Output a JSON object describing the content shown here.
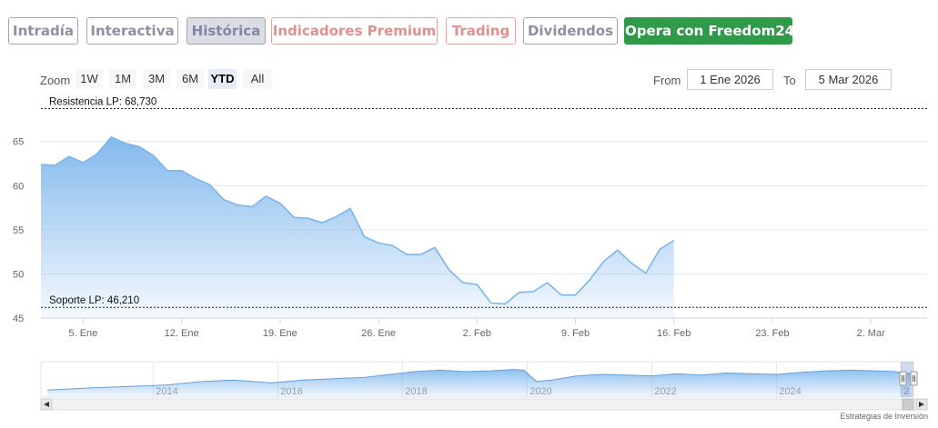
{
  "nav": {
    "tabs": [
      {
        "label": "Intradía",
        "style": "gray"
      },
      {
        "label": "Interactiva",
        "style": "gray"
      },
      {
        "label": "Histórica",
        "style": "active"
      },
      {
        "label": "Indicadores Premium",
        "style": "red"
      },
      {
        "label": "Trading",
        "style": "red"
      },
      {
        "label": "Dividendos",
        "style": "gray"
      },
      {
        "label": "Opera con Freedom24",
        "style": "green"
      }
    ]
  },
  "range_selector": {
    "zoom_label": "Zoom",
    "buttons": [
      "1W",
      "1M",
      "3M",
      "6M",
      "YTD",
      "All"
    ],
    "selected": "YTD",
    "from_label": "From",
    "from_value": "1 Ene 2026",
    "to_label": "To",
    "to_value": "5 Mar 2026"
  },
  "chart_data": {
    "type": "area",
    "ylim": [
      45,
      69.5
    ],
    "y_ticks": [
      45,
      50,
      55,
      60,
      65
    ],
    "x_tick_labels": [
      "5. Ene",
      "12. Ene",
      "19. Ene",
      "26. Ene",
      "2. Feb",
      "9. Feb",
      "16. Feb",
      "23. Feb",
      "2. Mar"
    ],
    "x_tick_days": [
      4,
      11,
      18,
      25,
      32,
      39,
      46,
      53,
      60
    ],
    "x_range_days": [
      1,
      64
    ],
    "series": [
      {
        "days": [
          1,
          2,
          3,
          4,
          5,
          6,
          7,
          8,
          9,
          10,
          11,
          12,
          13,
          14,
          15,
          16,
          17,
          18,
          19,
          20,
          21,
          22,
          23,
          24,
          25,
          26,
          27,
          28,
          29,
          30,
          31,
          32,
          33,
          34,
          35,
          36,
          37,
          38,
          39,
          40,
          41,
          42,
          43,
          44,
          45,
          46,
          47,
          48,
          49,
          50,
          51,
          52,
          53,
          54,
          55,
          56,
          57,
          58,
          59,
          60,
          61,
          62,
          63,
          64
        ],
        "values": [
          62.4,
          62.3,
          63.3,
          62.6,
          63.6,
          65.5,
          64.8,
          64.4,
          63.4,
          61.7,
          61.7,
          60.8,
          60.1,
          58.4,
          57.8,
          57.6,
          58.8,
          58.0,
          56.4,
          56.3,
          55.8,
          56.5,
          57.4,
          54.2,
          53.5,
          53.2,
          52.2,
          52.2,
          53.0,
          50.5,
          49.0,
          48.8,
          46.7,
          46.6,
          47.9,
          48.0,
          49.0,
          47.6,
          47.6,
          49.3,
          51.4,
          52.7,
          51.2,
          50.1,
          52.8,
          53.8,
          null,
          null,
          null,
          null,
          null,
          null,
          null,
          null,
          null,
          null,
          null,
          null,
          null,
          null,
          null,
          null,
          null,
          null
        ]
      }
    ],
    "plot_lines": [
      {
        "label": "Resistencia LP: 68,730",
        "value": 68.73
      },
      {
        "label": "Soporte LP: 46,210",
        "value": 46.21
      }
    ],
    "navigator": {
      "x_labels": [
        "2014",
        "2016",
        "2018",
        "2020",
        "2022",
        "2024",
        "2"
      ],
      "x_years": [
        2014,
        2016,
        2018,
        2020,
        2022,
        2024,
        2026
      ],
      "x_range_years": [
        2012.2,
        2026.2
      ],
      "years": [
        2012.3,
        2013.0,
        2013.6,
        2014.2,
        2014.8,
        2015.3,
        2015.9,
        2016.4,
        2016.9,
        2017.4,
        2017.9,
        2018.2,
        2018.6,
        2019.0,
        2019.4,
        2019.8,
        2019.95,
        2020.15,
        2020.4,
        2020.8,
        2021.2,
        2021.6,
        2022.0,
        2022.4,
        2022.8,
        2023.2,
        2023.6,
        2024.0,
        2024.4,
        2024.8,
        2025.2,
        2025.6,
        2025.9,
        2026.15
      ],
      "values": [
        10,
        13,
        15,
        17,
        22,
        24,
        20,
        24,
        26,
        28,
        33,
        36,
        38,
        36,
        37,
        39,
        38,
        22,
        24,
        30,
        32,
        31,
        30,
        33,
        31,
        34,
        33,
        32,
        35,
        37,
        38,
        37,
        36,
        33
      ]
    }
  },
  "attribution": "Estrategias de Inversión"
}
